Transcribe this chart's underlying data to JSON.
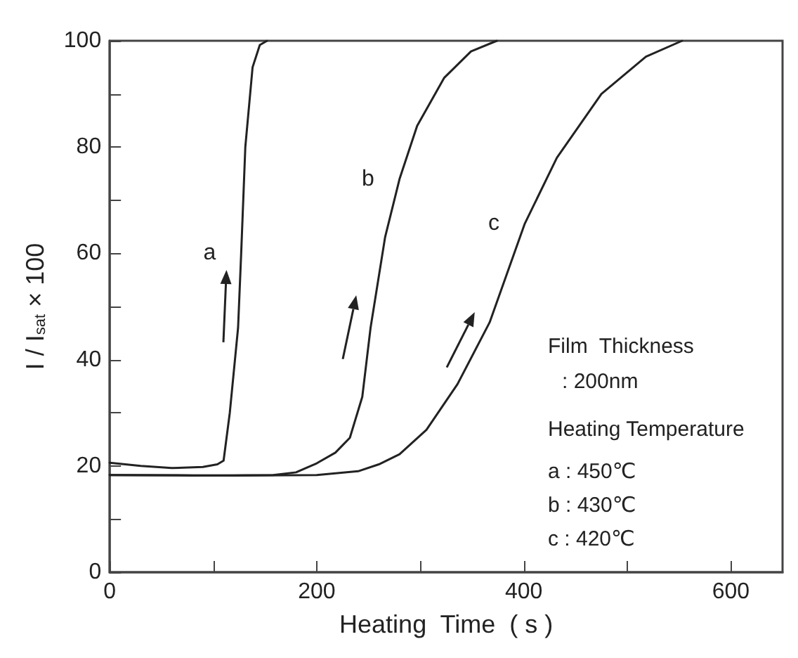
{
  "chart_data": {
    "type": "line",
    "xlabel": "Heating  Time  ( s )",
    "ylabel": "I / I$_{sat}$ × 100",
    "xlim": [
      0,
      650
    ],
    "xticks": [
      0,
      {
        "value": 100,
        "label": null
      },
      200,
      {
        "value": 300,
        "label": null
      },
      400,
      {
        "value": 500,
        "label": null
      },
      600
    ],
    "ylim": [
      0,
      100
    ],
    "yticks": [
      0,
      {
        "value": 10,
        "label": null
      },
      20,
      {
        "value": 30,
        "label": null
      },
      40,
      {
        "value": 50,
        "label": null
      },
      60,
      {
        "value": 70,
        "label": null
      },
      80,
      {
        "value": 90,
        "label": null
      },
      100
    ],
    "grid": false,
    "legend": false,
    "marker": "none",
    "line_style": "solid",
    "series": [
      {
        "name": "a",
        "color": "#222222",
        "x": [
          0,
          30,
          60,
          90,
          104,
          110,
          116,
          124,
          127,
          131,
          138,
          145,
          152
        ],
        "values": [
          20.6,
          20,
          19.6,
          19.8,
          20.3,
          21,
          30,
          46,
          60,
          80,
          95,
          99.2,
          100
        ]
      },
      {
        "name": "b",
        "color": "#222222",
        "x": [
          0,
          80,
          158,
          180,
          200,
          218,
          232,
          244,
          252,
          266,
          280,
          297,
          323,
          349,
          374
        ],
        "values": [
          18.3,
          18.2,
          18.3,
          18.8,
          20.5,
          22.5,
          25.3,
          33,
          46,
          63,
          74,
          84,
          93,
          98,
          100
        ]
      },
      {
        "name": "c",
        "color": "#222222",
        "x": [
          0,
          120,
          200,
          240,
          260,
          280,
          306,
          336,
          367,
          401,
          432,
          475,
          518,
          553
        ],
        "values": [
          18.3,
          18.2,
          18.3,
          19,
          20.3,
          22.2,
          26.8,
          35.4,
          47,
          65.6,
          78,
          90,
          97,
          100
        ]
      }
    ],
    "annotations": [
      "Film  Thickness",
      ": 200nm",
      "Heating Temperature",
      "a : 450℃",
      "b : 430℃",
      "c : 420℃"
    ]
  }
}
